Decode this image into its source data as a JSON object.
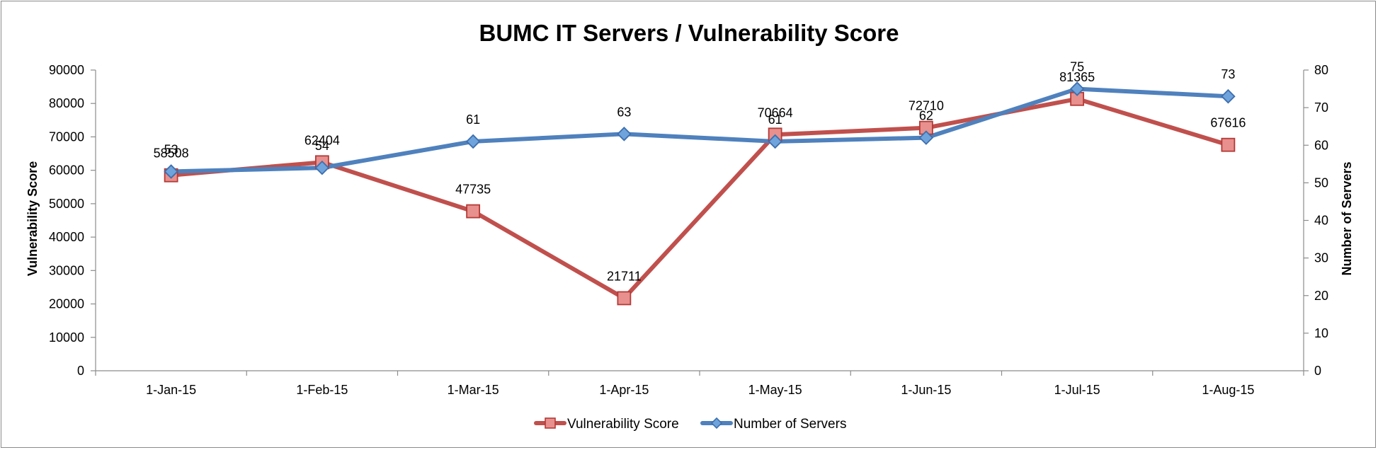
{
  "chart_data": {
    "type": "line",
    "title": "BUMC IT Servers / Vulnerability Score",
    "ylabel": "Vulnerability Score",
    "y2label": "Number of Servers",
    "categories": [
      "1-Jan-15",
      "1-Feb-15",
      "1-Mar-15",
      "1-Apr-15",
      "1-May-15",
      "1-Jun-15",
      "1-Jul-15",
      "1-Aug-15"
    ],
    "ylim": [
      0,
      90000
    ],
    "y2lim": [
      0,
      80
    ],
    "yticks": [
      "0",
      "10000",
      "20000",
      "30000",
      "40000",
      "50000",
      "60000",
      "70000",
      "80000",
      "90000"
    ],
    "y2ticks": [
      "0",
      "10",
      "20",
      "30",
      "40",
      "50",
      "60",
      "70",
      "80"
    ],
    "series": [
      {
        "name": "Vulnerability Score",
        "axis": "left",
        "color": "#c0504d",
        "marker": "square",
        "values": [
          58508,
          62404,
          47735,
          21711,
          70664,
          72710,
          81365,
          67616
        ]
      },
      {
        "name": "Number of Servers",
        "axis": "right",
        "color": "#4f81bd",
        "marker": "diamond",
        "values": [
          53,
          54,
          61,
          63,
          61,
          62,
          75,
          73
        ]
      }
    ],
    "grid": false,
    "legend": "bottom"
  }
}
